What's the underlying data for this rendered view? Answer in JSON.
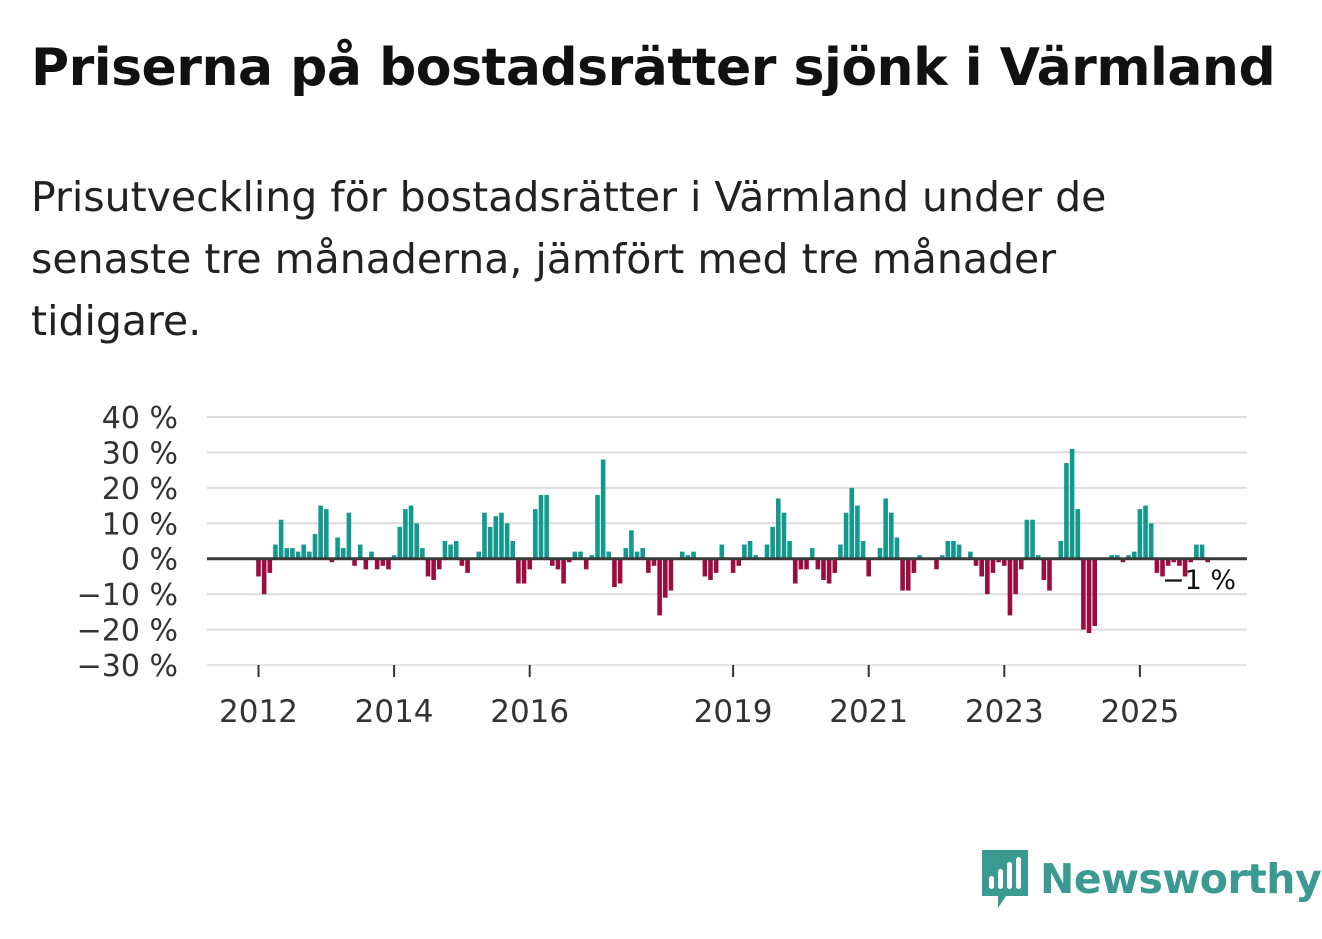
{
  "header": {
    "title": "Priserna på bostadsrätter sjönk i Värmland",
    "subtitle": "Prisutveckling för bostadsrätter i Värmland under de senaste tre månaderna, jämfört med tre månader tidigare."
  },
  "brand": {
    "name": "Newsworthy",
    "color": "#3a9a92"
  },
  "chart_data": {
    "type": "bar",
    "title": "Priserna på bostadsrätter sjönk i Värmland",
    "xlabel": "",
    "ylabel": "",
    "ylim": [
      -30,
      40
    ],
    "y_ticks": [
      40,
      30,
      20,
      10,
      0,
      -10,
      -20,
      -30
    ],
    "y_tick_labels": [
      "40 %",
      "30 %",
      "20 %",
      "10 %",
      "0 %",
      "−10 %",
      "−20 %",
      "−30 %"
    ],
    "x_tick_labels": [
      "2012",
      "2014",
      "2016",
      "2019",
      "2021",
      "2023",
      "2025"
    ],
    "x_tick_months": [
      0,
      24,
      48,
      84,
      108,
      132,
      156
    ],
    "start": "2012-01",
    "positive_color": "#14998f",
    "negative_color": "#9b0c3f",
    "last_value_label": "−1 %",
    "values": [
      -5,
      -10,
      -4,
      4,
      11,
      3,
      3,
      2,
      4,
      2,
      7,
      15,
      14,
      -1,
      6,
      3,
      13,
      -2,
      4,
      -3,
      2,
      -3,
      -2,
      -3,
      1,
      9,
      14,
      15,
      10,
      3,
      -5,
      -6,
      -3,
      5,
      4,
      5,
      -2,
      -4,
      0,
      2,
      13,
      9,
      12,
      13,
      10,
      5,
      -7,
      -7,
      -3,
      14,
      18,
      18,
      -2,
      -3,
      -7,
      -1,
      2,
      2,
      -3,
      1,
      18,
      28,
      2,
      -8,
      -7,
      3,
      8,
      2,
      3,
      -4,
      -2,
      -16,
      -11,
      -9,
      0,
      2,
      1,
      2,
      0,
      -5,
      -6,
      -4,
      4,
      0,
      -4,
      -2,
      4,
      5,
      1,
      0,
      4,
      9,
      17,
      13,
      5,
      -7,
      -3,
      -3,
      3,
      -3,
      -6,
      -7,
      -4,
      4,
      13,
      20,
      15,
      5,
      -5,
      0,
      3,
      17,
      13,
      6,
      -9,
      -9,
      -4,
      1,
      0,
      0,
      -3,
      1,
      5,
      5,
      4,
      0,
      2,
      -2,
      -5,
      -10,
      -4,
      -1,
      -2,
      -16,
      -10,
      -3,
      11,
      11,
      1,
      -6,
      -9,
      0,
      5,
      27,
      31,
      14,
      -20,
      -21,
      -19,
      0,
      0,
      1,
      1,
      -1,
      1,
      2,
      14,
      15,
      10,
      -4,
      -5,
      -2,
      -1,
      -2,
      -5,
      -1,
      4,
      4,
      -1
    ]
  }
}
